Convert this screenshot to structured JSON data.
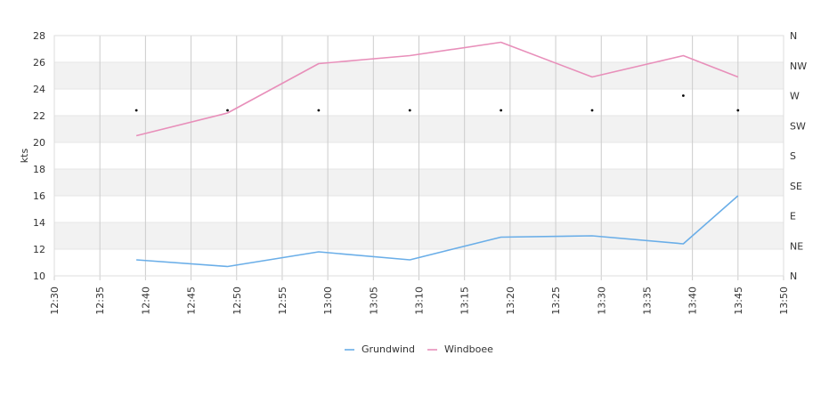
{
  "chart_data": {
    "type": "line",
    "ylabel": "kts",
    "ylim": [
      10,
      28
    ],
    "yticks": [
      "10",
      "12",
      "14",
      "16",
      "18",
      "20",
      "22",
      "24",
      "26",
      "28"
    ],
    "direction_axis": {
      "position": "right",
      "labels": [
        "N",
        "NE",
        "E",
        "SE",
        "S",
        "SW",
        "W",
        "NW",
        "N"
      ]
    },
    "xlim": [
      "12:30",
      "13:50"
    ],
    "xticks": [
      "12:30",
      "12:35",
      "12:40",
      "12:45",
      "12:50",
      "12:55",
      "13:00",
      "13:05",
      "13:10",
      "13:15",
      "13:20",
      "13:25",
      "13:30",
      "13:35",
      "13:40",
      "13:45",
      "13:50"
    ],
    "x": [
      "12:39",
      "12:49",
      "12:59",
      "13:09",
      "13:19",
      "13:29",
      "13:39",
      "13:45"
    ],
    "series": [
      {
        "name": "Grundwind",
        "color": "#6aaee8",
        "values": [
          11.2,
          10.7,
          11.8,
          11.2,
          12.9,
          13.0,
          12.4,
          16.0
        ]
      },
      {
        "name": "Windboee",
        "color": "#e88fba",
        "values": [
          20.5,
          22.2,
          25.9,
          26.5,
          27.5,
          24.9,
          26.5,
          24.9
        ]
      }
    ],
    "direction_points": {
      "color": "#000000",
      "values": [
        22.4,
        22.4,
        22.4,
        22.4,
        22.4,
        22.4,
        23.5,
        22.4
      ]
    },
    "grid": true,
    "legend": "bottom-center"
  }
}
